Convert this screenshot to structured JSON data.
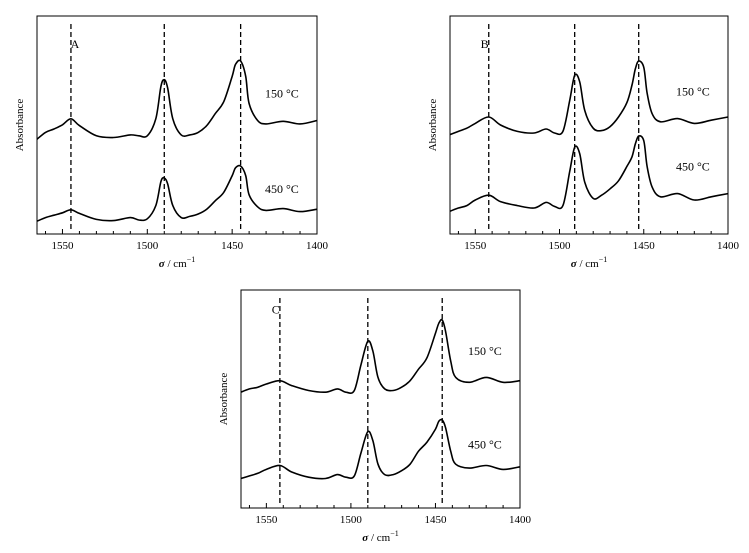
{
  "chart_data": [
    {
      "type": "line",
      "panel_label": "A",
      "xlabel_symbol": "σ",
      "xlabel_unit": " / cm",
      "xlabel_exp": "−1",
      "ylabel": "Absorbance",
      "xlim": [
        1565,
        1400
      ],
      "x_ticks": [
        1550,
        1500,
        1450,
        1400
      ],
      "y_ticks": false,
      "dashed_markers": [
        1545,
        1490,
        1445
      ],
      "series": [
        {
          "name": "150 °C",
          "x": [
            1565,
            1560,
            1555,
            1550,
            1545,
            1540,
            1530,
            1520,
            1510,
            1505,
            1500,
            1495,
            1492,
            1490,
            1488,
            1485,
            1480,
            1475,
            1470,
            1465,
            1460,
            1455,
            1450,
            1448,
            1445,
            1442,
            1440,
            1435,
            1430,
            1420,
            1410,
            1400
          ],
          "y": [
            0.08,
            0.16,
            0.2,
            0.25,
            0.32,
            0.24,
            0.12,
            0.1,
            0.13,
            0.12,
            0.12,
            0.32,
            0.7,
            0.78,
            0.68,
            0.32,
            0.13,
            0.13,
            0.16,
            0.24,
            0.38,
            0.52,
            0.82,
            0.96,
            1.0,
            0.82,
            0.5,
            0.3,
            0.26,
            0.29,
            0.26,
            0.3
          ]
        },
        {
          "name": "450 °C",
          "x": [
            1565,
            1560,
            1555,
            1550,
            1545,
            1540,
            1530,
            1520,
            1510,
            1505,
            1500,
            1495,
            1492,
            1490,
            1488,
            1485,
            1480,
            1475,
            1470,
            1465,
            1460,
            1455,
            1450,
            1448,
            1445,
            1442,
            1440,
            1435,
            1430,
            1420,
            1410,
            1400
          ],
          "y": [
            0.08,
            0.14,
            0.18,
            0.22,
            0.27,
            0.21,
            0.11,
            0.09,
            0.14,
            0.1,
            0.12,
            0.34,
            0.74,
            0.8,
            0.7,
            0.34,
            0.14,
            0.16,
            0.2,
            0.28,
            0.42,
            0.56,
            0.84,
            0.97,
            1.0,
            0.84,
            0.52,
            0.32,
            0.26,
            0.29,
            0.24,
            0.28
          ]
        }
      ]
    },
    {
      "type": "line",
      "panel_label": "B",
      "xlabel_symbol": "σ",
      "xlabel_unit": " / cm",
      "xlabel_exp": "−1",
      "ylabel": "Absorbance",
      "xlim": [
        1565,
        1400
      ],
      "x_ticks": [
        1550,
        1500,
        1450,
        1400
      ],
      "y_ticks": false,
      "dashed_markers": [
        1542,
        1491,
        1453
      ],
      "series": [
        {
          "name": "150 °C",
          "x": [
            1565,
            1560,
            1555,
            1550,
            1542,
            1535,
            1525,
            1515,
            1508,
            1503,
            1498,
            1494,
            1491,
            1488,
            1485,
            1480,
            1475,
            1470,
            1465,
            1460,
            1457,
            1455,
            1453,
            1450,
            1448,
            1445,
            1440,
            1430,
            1420,
            1410,
            1400
          ],
          "y": [
            0.08,
            0.12,
            0.16,
            0.22,
            0.3,
            0.2,
            0.12,
            0.1,
            0.15,
            0.1,
            0.12,
            0.5,
            0.82,
            0.74,
            0.38,
            0.16,
            0.13,
            0.18,
            0.3,
            0.48,
            0.7,
            0.9,
            1.0,
            0.92,
            0.6,
            0.34,
            0.24,
            0.28,
            0.22,
            0.26,
            0.3
          ]
        },
        {
          "name": "450 °C",
          "x": [
            1565,
            1560,
            1555,
            1550,
            1542,
            1535,
            1525,
            1515,
            1508,
            1503,
            1498,
            1494,
            1491,
            1488,
            1485,
            1480,
            1475,
            1470,
            1465,
            1460,
            1457,
            1455,
            1453,
            1450,
            1448,
            1445,
            1440,
            1430,
            1420,
            1410,
            1400
          ],
          "y": [
            0.06,
            0.1,
            0.13,
            0.2,
            0.26,
            0.18,
            0.13,
            0.1,
            0.17,
            0.12,
            0.13,
            0.55,
            0.86,
            0.78,
            0.42,
            0.22,
            0.26,
            0.34,
            0.44,
            0.62,
            0.74,
            0.9,
            1.0,
            0.94,
            0.62,
            0.36,
            0.24,
            0.28,
            0.2,
            0.24,
            0.28
          ]
        }
      ]
    },
    {
      "type": "line",
      "panel_label": "C",
      "xlabel_symbol": "σ",
      "xlabel_unit": " / cm",
      "xlabel_exp": "−1",
      "ylabel": "Absorbance",
      "xlim": [
        1565,
        1400
      ],
      "x_ticks": [
        1550,
        1500,
        1450,
        1400
      ],
      "y_ticks": false,
      "dashed_markers": [
        1542,
        1490,
        1446
      ],
      "series": [
        {
          "name": "150 °C",
          "x": [
            1565,
            1560,
            1555,
            1550,
            1542,
            1535,
            1525,
            1515,
            1508,
            1503,
            1498,
            1494,
            1490,
            1487,
            1484,
            1480,
            1475,
            1470,
            1465,
            1460,
            1455,
            1450,
            1448,
            1446,
            1444,
            1441,
            1438,
            1430,
            1420,
            1410,
            1400
          ],
          "y": [
            0.12,
            0.16,
            0.18,
            0.22,
            0.26,
            0.2,
            0.14,
            0.12,
            0.16,
            0.12,
            0.14,
            0.46,
            0.74,
            0.62,
            0.3,
            0.16,
            0.14,
            0.18,
            0.26,
            0.4,
            0.54,
            0.84,
            0.96,
            1.0,
            0.86,
            0.5,
            0.3,
            0.24,
            0.3,
            0.24,
            0.26
          ]
        },
        {
          "name": "450 °C",
          "x": [
            1565,
            1560,
            1555,
            1550,
            1542,
            1535,
            1525,
            1515,
            1508,
            1503,
            1498,
            1494,
            1490,
            1487,
            1484,
            1480,
            1475,
            1470,
            1465,
            1460,
            1455,
            1450,
            1448,
            1446,
            1444,
            1441,
            1438,
            1430,
            1420,
            1410,
            1400
          ],
          "y": [
            0.1,
            0.14,
            0.18,
            0.24,
            0.3,
            0.2,
            0.12,
            0.1,
            0.16,
            0.12,
            0.14,
            0.5,
            0.82,
            0.68,
            0.32,
            0.16,
            0.16,
            0.22,
            0.32,
            0.52,
            0.66,
            0.86,
            0.98,
            1.0,
            0.88,
            0.52,
            0.32,
            0.26,
            0.3,
            0.24,
            0.28
          ]
        }
      ]
    }
  ]
}
